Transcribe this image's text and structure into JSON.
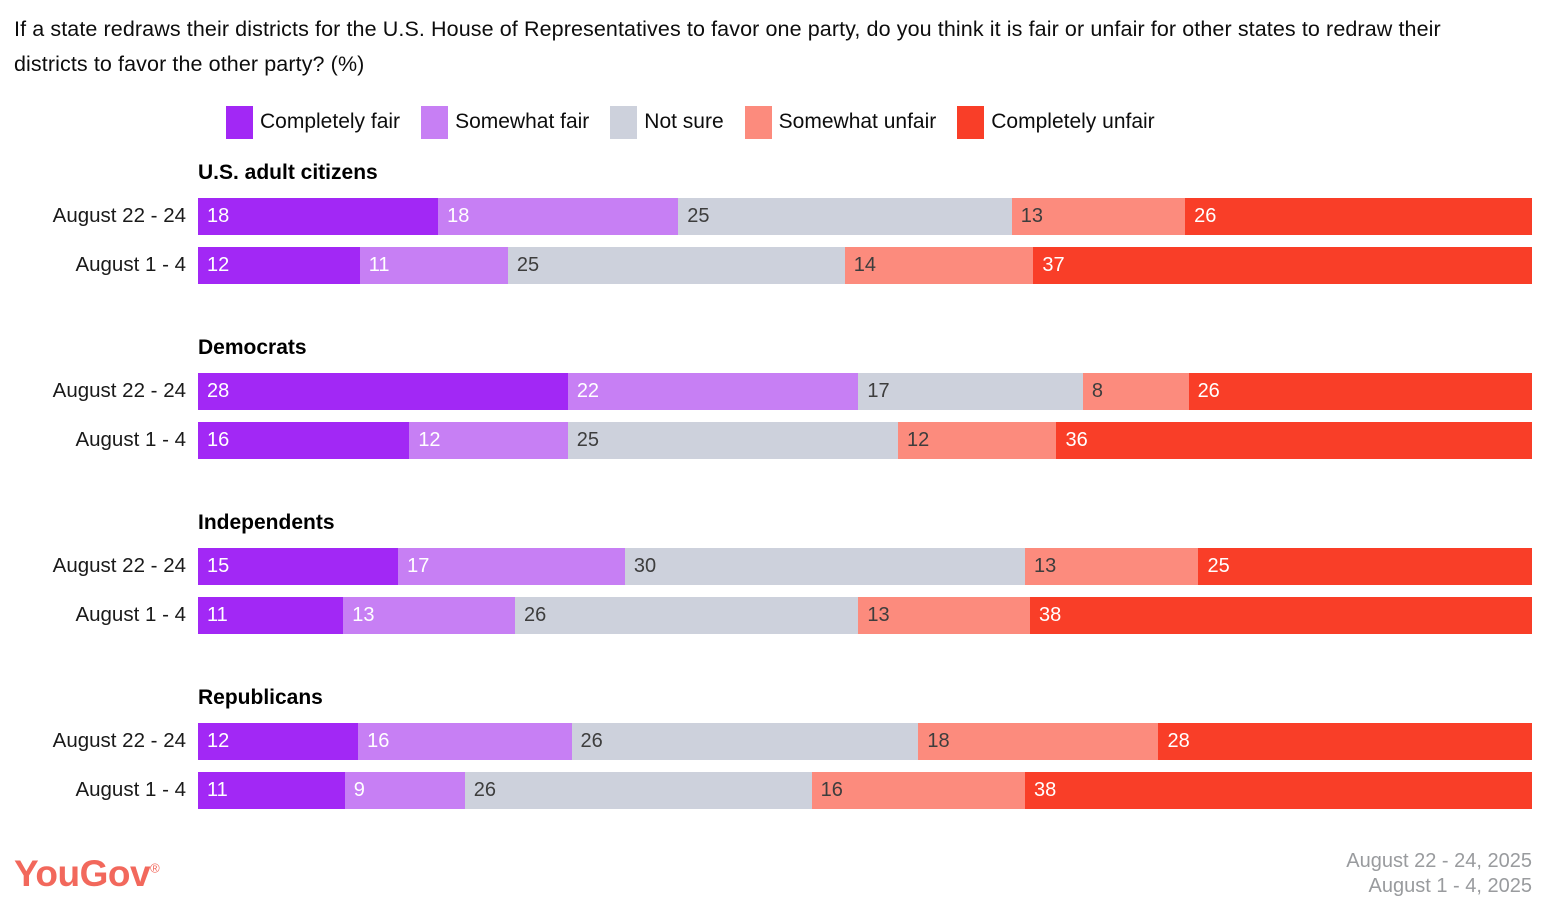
{
  "title": "If a state redraws their districts for the U.S. House of Representatives to favor one party, do you think it is fair or unfair for other states to redraw their districts to favor the other party? (%)",
  "footer": {
    "logo": "YouGov",
    "registered": "®",
    "logo_color": "#f2685c",
    "date_line_1": "August 22 - 24, 2025",
    "date_line_2": "August 1 - 4, 2025"
  },
  "chart_data": {
    "type": "bar",
    "stacked": true,
    "orientation": "horizontal",
    "unit": "%",
    "title": "If a state redraws their districts for the U.S. House of Representatives to favor one party, do you think it is fair or unfair for other states to redraw their districts to favor the other party? (%)",
    "legend": [
      "Completely fair",
      "Somewhat fair",
      "Not sure",
      "Somewhat unfair",
      "Completely unfair"
    ],
    "legend_position": "top",
    "colors": [
      "#a228f5",
      "#c77ff4",
      "#cdd1dc",
      "#fc8b7d",
      "#f93e28"
    ],
    "label_colors": [
      "#ffffff",
      "#ffffff",
      "#3d3d3d",
      "#3d3d3d",
      "#ffffff"
    ],
    "xlim": [
      0,
      100
    ],
    "grid": false,
    "groups": [
      {
        "label": "U.S. adult citizens",
        "rows": [
          {
            "label": "August 22 - 24",
            "values": [
              18,
              18,
              25,
              13,
              26
            ]
          },
          {
            "label": "August 1 - 4",
            "values": [
              12,
              11,
              25,
              14,
              37
            ]
          }
        ]
      },
      {
        "label": "Democrats",
        "rows": [
          {
            "label": "August 22 - 24",
            "values": [
              28,
              22,
              17,
              8,
              26
            ]
          },
          {
            "label": "August 1 - 4",
            "values": [
              16,
              12,
              25,
              12,
              36
            ]
          }
        ]
      },
      {
        "label": "Independents",
        "rows": [
          {
            "label": "August 22 - 24",
            "values": [
              15,
              17,
              30,
              13,
              25
            ]
          },
          {
            "label": "August 1 - 4",
            "values": [
              11,
              13,
              26,
              13,
              38
            ]
          }
        ]
      },
      {
        "label": "Republicans",
        "rows": [
          {
            "label": "August 22 - 24",
            "values": [
              12,
              16,
              26,
              18,
              28
            ]
          },
          {
            "label": "August 1 - 4",
            "values": [
              11,
              9,
              26,
              16,
              38
            ]
          }
        ]
      }
    ]
  }
}
